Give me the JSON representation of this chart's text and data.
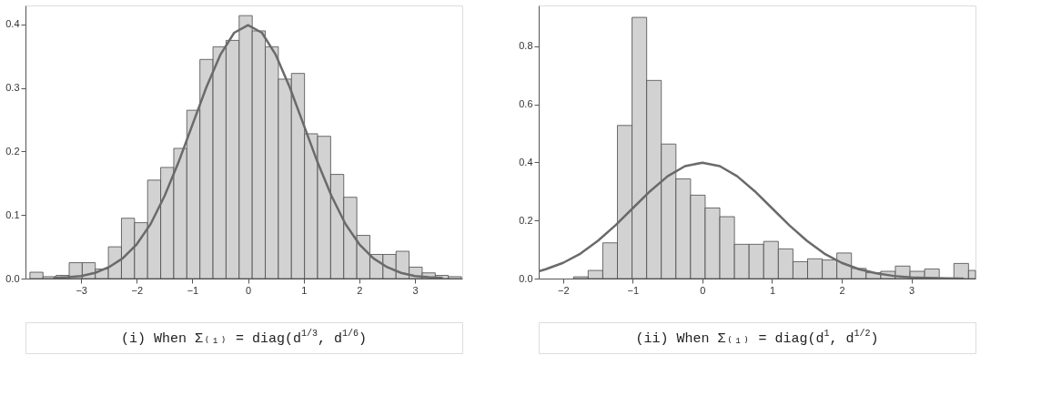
{
  "chart_data": [
    {
      "type": "histogram",
      "title": "(i) When Σ₍₁₎ = diag(d$^{1/3}$, d$^{1/6}$)",
      "color": "#d2d2d2",
      "bins": [
        -3.92,
        -3.685,
        -3.45,
        -3.215,
        -2.98,
        -2.745,
        -2.51,
        -2.275,
        -2.04,
        -1.805,
        -1.57,
        -1.335,
        -1.1,
        -0.865,
        -0.63,
        -0.395,
        -0.16,
        0.075,
        0.31,
        0.545,
        0.78,
        1.015,
        1.25,
        1.485,
        1.72,
        1.955,
        2.19,
        2.425,
        2.66,
        2.895,
        3.13,
        3.365,
        3.6,
        3.835
      ],
      "values": [
        0.01,
        0.003,
        0.005,
        0.025,
        0.025,
        0.015,
        0.05,
        0.095,
        0.088,
        0.155,
        0.175,
        0.205,
        0.265,
        0.345,
        0.365,
        0.375,
        0.414,
        0.39,
        0.365,
        0.314,
        0.323,
        0.228,
        0.224,
        0.164,
        0.128,
        0.068,
        0.038,
        0.038,
        0.043,
        0.018,
        0.009,
        0.005,
        0.003
      ],
      "series": [
        {
          "type": "line",
          "color": "#6a6a6a",
          "x": [
            -3.5,
            -3.25,
            -3,
            -2.75,
            -2.5,
            -2.25,
            -2,
            -1.75,
            -1.5,
            -1.25,
            -1,
            -0.75,
            -0.5,
            -0.25,
            0,
            0.25,
            0.5,
            0.75,
            1,
            1.25,
            1.5,
            1.75,
            2,
            2.25,
            2.5,
            2.75,
            3,
            3.25,
            3.5
          ],
          "values": [
            0.001,
            0.002,
            0.004,
            0.009,
            0.018,
            0.032,
            0.054,
            0.086,
            0.13,
            0.183,
            0.242,
            0.301,
            0.352,
            0.387,
            0.399,
            0.387,
            0.352,
            0.301,
            0.242,
            0.183,
            0.13,
            0.086,
            0.054,
            0.032,
            0.018,
            0.009,
            0.004,
            0.002,
            0.001
          ]
        }
      ],
      "xlim": [
        -4.0,
        3.85
      ],
      "ylim": [
        0,
        0.43
      ],
      "xticks": [
        -3,
        -2,
        -1,
        0,
        1,
        2,
        3
      ],
      "yticks": [
        {
          "value": 0,
          "label": "0.0"
        },
        0.1,
        0.2,
        0.3,
        0.4
      ],
      "grid": false
    },
    {
      "type": "histogram",
      "title": "(ii) When Σ₍₁₎ = diag(d$^{1}$, d$^{1/2}$)",
      "color": "#d2d2d2",
      "bins": [
        -1.85,
        -1.64,
        -1.43,
        -1.22,
        -1.01,
        -0.8,
        -0.59,
        -0.38,
        -0.17,
        0.04,
        0.25,
        0.46,
        0.67,
        0.88,
        1.09,
        1.3,
        1.51,
        1.72,
        1.93,
        2.14,
        2.35,
        2.56,
        2.77,
        2.98,
        3.19,
        3.4,
        3.61,
        3.82,
        3.92
      ],
      "values": [
        0.006,
        0.028,
        0.123,
        0.527,
        0.899,
        0.682,
        0.463,
        0.343,
        0.287,
        0.243,
        0.213,
        0.118,
        0.118,
        0.128,
        0.102,
        0.058,
        0.068,
        0.064,
        0.088,
        0.035,
        0.02,
        0.025,
        0.043,
        0.025,
        0.033,
        null,
        0.052,
        0.028
      ],
      "series": [
        {
          "type": "line",
          "color": "#6a6a6a",
          "x": [
            -2.35,
            -2.25,
            -2,
            -1.75,
            -1.5,
            -1.25,
            -1,
            -0.75,
            -0.5,
            -0.25,
            0,
            0.25,
            0.5,
            0.75,
            1,
            1.25,
            1.5,
            1.75,
            2,
            2.25,
            2.5,
            2.75,
            3,
            3.25,
            3.5,
            3.75
          ],
          "values": [
            0.025,
            0.032,
            0.054,
            0.086,
            0.13,
            0.183,
            0.242,
            0.301,
            0.352,
            0.387,
            0.399,
            0.387,
            0.352,
            0.301,
            0.242,
            0.183,
            0.13,
            0.086,
            0.054,
            0.032,
            0.018,
            0.009,
            0.004,
            0.002,
            0.001,
            0.0
          ]
        }
      ],
      "xlim": [
        -2.35,
        3.92
      ],
      "ylim": [
        0,
        0.94
      ],
      "xticks": [
        -2,
        -1,
        0,
        1,
        2,
        3
      ],
      "yticks": [
        {
          "value": 0,
          "label": "0.0"
        },
        0.2,
        0.4,
        0.6,
        0.8
      ],
      "grid": false
    }
  ]
}
